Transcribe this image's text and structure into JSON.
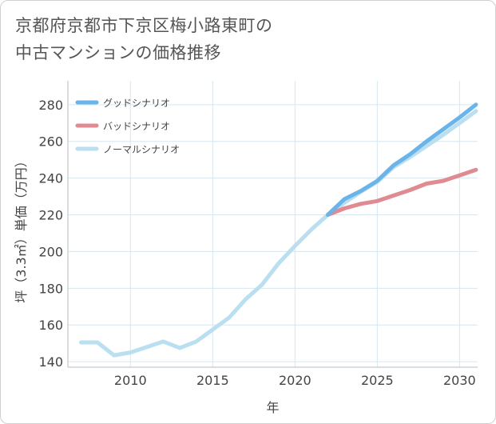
{
  "title": {
    "line1": "京都府京都市下京区梅小路東町の",
    "line2": "中古マンションの価格推移"
  },
  "chart_data": {
    "type": "line",
    "xlabel": "年",
    "ylabel": "坪（3.3㎡）単価（万円）",
    "xlim": [
      2006.2,
      2031.1
    ],
    "ylim": [
      137,
      293
    ],
    "x_ticks": [
      2010,
      2015,
      2020,
      2025,
      2030
    ],
    "y_ticks": [
      140,
      160,
      180,
      200,
      220,
      240,
      260,
      280
    ],
    "grid": true,
    "legend_position": "top-left",
    "series": [
      {
        "name": "グッドシナリオ",
        "color": "#6ab4ea",
        "x": [
          2022,
          2023,
          2024,
          2025,
          2026,
          2027,
          2028,
          2029,
          2030,
          2031
        ],
        "y": [
          220,
          228.5,
          233,
          238.5,
          247,
          253,
          260,
          266.5,
          273,
          280
        ]
      },
      {
        "name": "バッドシナリオ",
        "color": "#e08a92",
        "x": [
          2022,
          2023,
          2024,
          2025,
          2026,
          2027,
          2028,
          2029,
          2030,
          2031
        ],
        "y": [
          220,
          223.5,
          226,
          227.5,
          230.5,
          233.5,
          237,
          238.5,
          241.5,
          244.5
        ]
      },
      {
        "name": "ノーマルシナリオ",
        "color": "#b9dff0",
        "x": [
          2007,
          2008,
          2009,
          2010,
          2011,
          2012,
          2013,
          2014,
          2015,
          2016,
          2017,
          2018,
          2019,
          2020,
          2021,
          2022,
          2023,
          2024,
          2025,
          2026,
          2027,
          2028,
          2029,
          2030,
          2031
        ],
        "y": [
          150.5,
          150.5,
          143.5,
          145,
          148,
          151,
          147.5,
          151,
          157.5,
          164,
          174,
          182,
          193.5,
          203,
          212,
          220,
          226.5,
          232.5,
          238,
          246,
          251.5,
          257.5,
          263.5,
          270,
          276.5
        ]
      }
    ]
  }
}
